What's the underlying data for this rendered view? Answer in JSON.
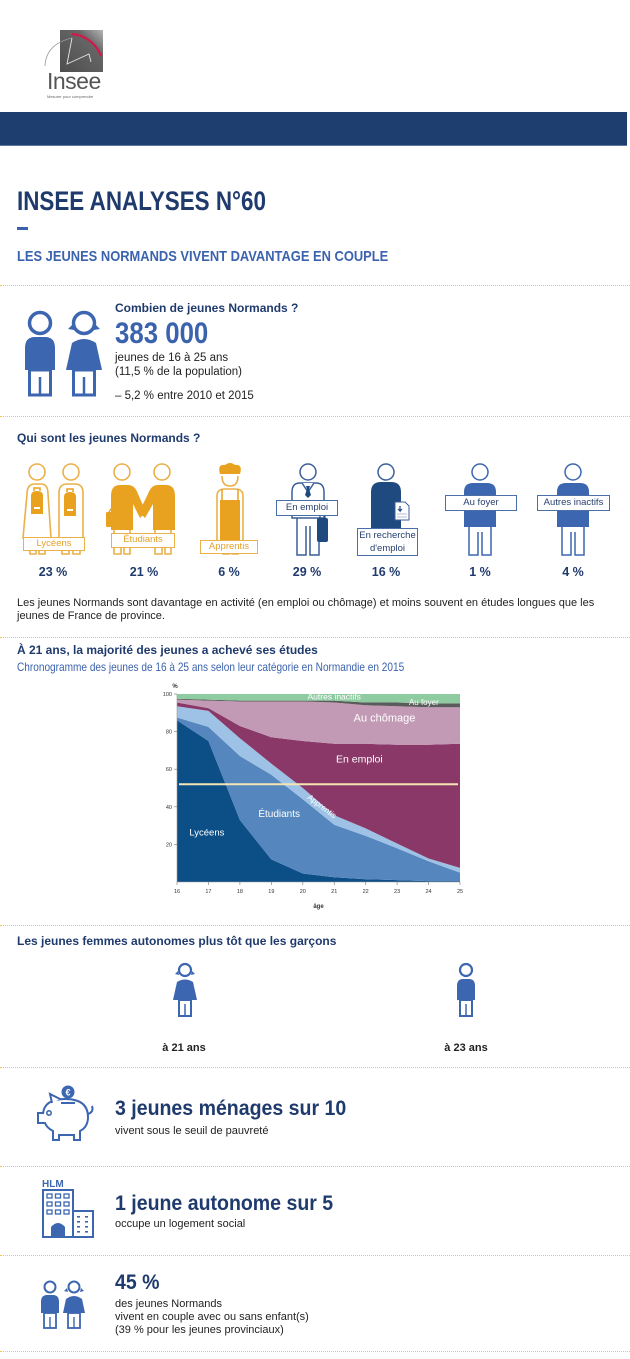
{
  "logo": {
    "name": "Insee",
    "tagline": "Mesurer pour comprendre",
    "icon": "insee-logo"
  },
  "header": {
    "title": "INSEE ANALYSES N°60",
    "subtitle": "LES JEUNES NORMANDS VIVENT DAVANTAGE EN COUPLE"
  },
  "count_section": {
    "heading": "Combien de jeunes Normands ?",
    "value": "383 000",
    "line1": "jeunes de 16 à 25 ans",
    "line2": "(11,5 % de la population)",
    "change_value": "– 5,2 %",
    "change_text": "entre 2010 et 2015",
    "icon": "young-couple-icon"
  },
  "profile_section": {
    "heading": "Qui sont les jeunes Normands ?",
    "categories": [
      {
        "label": "Lycéens",
        "pct": "23 %",
        "icon": "high-school-students-icon"
      },
      {
        "label": "Étudiants",
        "pct": "21 %",
        "icon": "students-icon"
      },
      {
        "label": "Apprentis",
        "pct": "6 %",
        "icon": "apprentice-icon"
      },
      {
        "label": "En emploi",
        "pct": "29 %",
        "icon": "employed-icon"
      },
      {
        "label": "En recherche d'emploi",
        "pct": "16 %",
        "icon": "job-seeker-icon"
      },
      {
        "label": "Au foyer",
        "pct": "1 %",
        "icon": "homemaker-icon"
      },
      {
        "label": "Autres inactifs",
        "pct": "4 %",
        "icon": "other-inactive-icon"
      }
    ],
    "note": "Les jeunes Normands sont davantage en activité (en emploi ou chômage) et moins souvent en études longues que les jeunes de France de province."
  },
  "chart_section": {
    "heading": "À 21 ans, la majorité des jeunes a achevé ses études",
    "subtitle": "Chronogramme des jeunes de 16 à 25 ans selon leur catégorie en Normandie en 2015"
  },
  "chart_data": {
    "type": "area",
    "stacked": true,
    "title": "Chronogramme des jeunes de 16 à 25 ans selon leur catégorie en Normandie en 2015",
    "xlabel": "âge",
    "ylabel": "%",
    "x": [
      16,
      17,
      18,
      19,
      20,
      21,
      22,
      23,
      24,
      25
    ],
    "xlim": [
      16,
      25
    ],
    "ylim": [
      0,
      100
    ],
    "yticks": [
      20,
      40,
      60,
      80,
      100
    ],
    "grid": false,
    "legend": "inline labels",
    "series": [
      {
        "name": "Lycéens",
        "color": "#0c4f86",
        "values": [
          86,
          75,
          33,
          12,
          4.5,
          2.5,
          1.5,
          1,
          0.5,
          0.5
        ]
      },
      {
        "name": "Étudiants",
        "color": "#5586bd",
        "values": [
          1.5,
          7.5,
          34,
          45,
          39.5,
          28,
          23,
          17,
          10.5,
          4.5
        ]
      },
      {
        "name": "Apprentis",
        "color": "#9ec2e6",
        "values": [
          6,
          8.5,
          9.5,
          6,
          6,
          5,
          4,
          2.5,
          1.5,
          2.5
        ]
      },
      {
        "name": "En emploi",
        "color": "#8a3868",
        "values": [
          2,
          1.5,
          6.5,
          14,
          25,
          38,
          45,
          52.5,
          60.5,
          66
        ]
      },
      {
        "name": "Au chômage",
        "color": "#c39ab5",
        "values": [
          1.5,
          4,
          13,
          19,
          21,
          22,
          20.5,
          20.5,
          20,
          19.5
        ]
      },
      {
        "name": "Au foyer",
        "color": "#5b5b5b",
        "values": [
          0.5,
          0.5,
          0.5,
          0.5,
          0.5,
          1,
          1.5,
          2,
          2,
          2
        ]
      },
      {
        "name": "Autres inactifs",
        "color": "#8fcba1",
        "values": [
          2.5,
          3,
          3.5,
          3.5,
          3.5,
          3.5,
          4.5,
          4.5,
          5,
          5
        ]
      }
    ],
    "reference_line": {
      "y": 52,
      "color": "#f4e6b4"
    }
  },
  "autonomy_section": {
    "heading": "Les jeunes femmes autonomes plus tôt que les garçons",
    "female_label": "à 21 ans",
    "male_label": "à 23 ans"
  },
  "facts": [
    {
      "headline": "3 jeunes ménages sur 10",
      "lines": [
        "vivent sous le seuil de pauvreté"
      ],
      "icon": "piggy-bank-icon"
    },
    {
      "headline": "1 jeune autonome sur 5",
      "lines": [
        "occupe un logement social"
      ],
      "icon": "hlm-building-icon",
      "icon_label": "HLM"
    },
    {
      "headline": "45 %",
      "lines": [
        "des jeunes Normands",
        "vivent en couple avec ou sans enfant(s)",
        "(39 % pour les jeunes provinciaux)"
      ],
      "icon": "couple-icon"
    }
  ],
  "colors": {
    "navy": "#1f3a6d",
    "blue": "#3b62ad",
    "banner": "#1f3e70",
    "orange": "#eaa21c",
    "separator": "#f2c641"
  }
}
